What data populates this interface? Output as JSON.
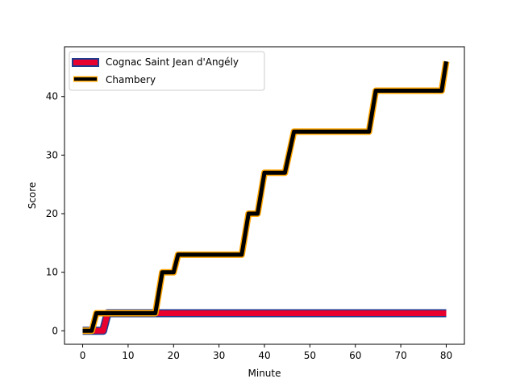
{
  "chart_data": {
    "type": "line",
    "title": "",
    "xlabel": "Minute",
    "ylabel": "Score",
    "xlim": [
      -4,
      84
    ],
    "ylim": [
      -2.3,
      48.5
    ],
    "xticks": [
      0,
      10,
      20,
      30,
      40,
      50,
      60,
      70,
      80
    ],
    "yticks": [
      0,
      10,
      20,
      30,
      40
    ],
    "grid": false,
    "legend_position": "top-left",
    "series": [
      {
        "name": "Cognac Saint Jean d'Angély",
        "color": "#e8002f",
        "edge_color": "#1f3b8f",
        "x": [
          0,
          2,
          2.5,
          4.5,
          5.5,
          80
        ],
        "y": [
          0,
          0,
          0,
          0,
          3,
          3
        ]
      },
      {
        "name": "Chambery",
        "color": "#000000",
        "edge_color": "#ffa500",
        "x": [
          0,
          2,
          3,
          16,
          17.5,
          20,
          21,
          35,
          36.5,
          38.5,
          40,
          44.5,
          46.5,
          63,
          64.5,
          79,
          80
        ],
        "y": [
          0,
          0,
          3,
          3,
          10,
          10,
          13,
          13,
          20,
          20,
          27,
          27,
          34,
          34,
          41,
          41,
          46
        ]
      }
    ]
  }
}
